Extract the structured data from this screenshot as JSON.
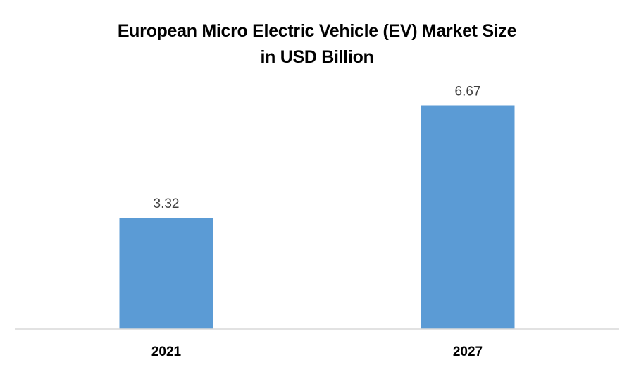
{
  "chart_data": {
    "type": "bar",
    "title": "European Micro Electric Vehicle (EV) Market Size",
    "subtitle": "in USD Billion",
    "categories": [
      "2021",
      "2027"
    ],
    "series": [
      {
        "values": [
          3.32,
          6.67
        ],
        "data_labels": [
          "3.32",
          "6.67"
        ],
        "color": "#5B9BD5"
      }
    ],
    "xlabel": "",
    "ylabel": "",
    "ylim": [
      0,
      8
    ],
    "grid": false,
    "legend": "none",
    "axis_color": "#D9D9D9"
  }
}
